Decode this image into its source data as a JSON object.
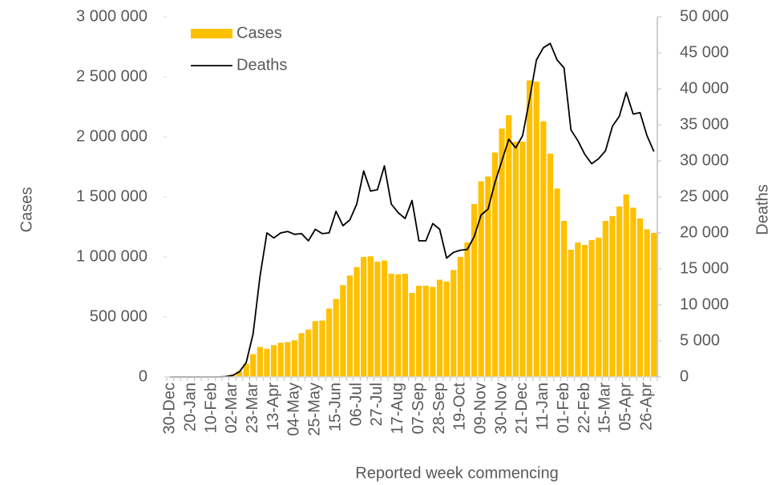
{
  "chart_data": {
    "type": "bar-line",
    "xlabel": "Reported week commencing",
    "ylabel": "Cases",
    "y2label": "Deaths",
    "categories": [
      "30-Dec",
      null,
      null,
      "20-Jan",
      null,
      null,
      "10-Feb",
      null,
      null,
      "02-Mar",
      null,
      null,
      "23-Mar",
      null,
      null,
      "13-Apr",
      null,
      null,
      "04-May",
      null,
      null,
      "25-May",
      null,
      null,
      "15-Jun",
      null,
      null,
      "06-Jul",
      null,
      null,
      "27-Jul",
      null,
      null,
      "17-Aug",
      null,
      null,
      "07-Sep",
      null,
      null,
      "28-Sep",
      null,
      null,
      "19-Oct",
      null,
      null,
      "09-Nov",
      null,
      null,
      "30-Nov",
      null,
      null,
      "21-Dec",
      null,
      null,
      "11-Jan",
      null,
      null,
      "01-Feb",
      null,
      null,
      "22-Feb",
      null,
      null,
      "15-Mar",
      null,
      null,
      "05-Apr",
      null,
      null,
      "26-Apr",
      null
    ],
    "series": [
      {
        "name": "Cases",
        "type": "bar",
        "color": "#FFC000",
        "values": [
          0,
          0,
          0,
          0,
          0,
          0,
          0,
          0,
          5000,
          20000,
          50000,
          110000,
          190000,
          250000,
          235000,
          265000,
          285000,
          290000,
          305000,
          365000,
          395000,
          465000,
          470000,
          570000,
          650000,
          765000,
          845000,
          915000,
          1000000,
          1005000,
          960000,
          970000,
          860000,
          855000,
          860000,
          700000,
          760000,
          760000,
          750000,
          810000,
          795000,
          890000,
          1000000,
          1120000,
          1440000,
          1630000,
          1670000,
          1870000,
          2070000,
          2180000,
          1960000,
          1960000,
          2470000,
          2460000,
          2130000,
          1860000,
          1570000,
          1300000,
          1060000,
          1120000,
          1100000,
          1140000,
          1160000,
          1300000,
          1340000,
          1420000,
          1520000,
          1410000,
          1320000,
          1230000,
          1200000
        ]
      },
      {
        "name": "Deaths",
        "type": "line",
        "axis": "y2",
        "color": "#000000",
        "values": [
          0,
          0,
          0,
          0,
          0,
          0,
          0,
          0,
          50,
          200,
          700,
          2000,
          6000,
          14000,
          20000,
          19300,
          20000,
          20200,
          19800,
          19900,
          18900,
          20500,
          19900,
          20000,
          23000,
          21000,
          21800,
          24000,
          28600,
          25800,
          26000,
          29300,
          24000,
          22800,
          22000,
          24500,
          18900,
          18900,
          21300,
          20500,
          16500,
          17300,
          17600,
          17700,
          19500,
          22500,
          23300,
          27000,
          30000,
          33000,
          31800,
          33500,
          38500,
          44000,
          45700,
          46300,
          44000,
          42900,
          34300,
          32800,
          30900,
          29600,
          30300,
          31400,
          34800,
          36200,
          39500,
          36500,
          36700,
          33500,
          31300
        ]
      }
    ],
    "ylim": [
      0,
      3000000
    ],
    "yticks": [
      0,
      {
        "value": 500000,
        "label": "500 000"
      },
      {
        "value": 1000000,
        "label": "1 000 000"
      },
      {
        "value": 1500000,
        "label": "1 500 000"
      },
      {
        "value": 2000000,
        "label": "2 000 000"
      },
      {
        "value": 2500000,
        "label": "2 500 000"
      },
      {
        "value": 3000000,
        "label": "3 000 000"
      }
    ],
    "y2lim": [
      0,
      50000
    ],
    "y2ticks": [
      0,
      {
        "value": 5000,
        "label": "5 000"
      },
      {
        "value": 10000,
        "label": "10 000"
      },
      {
        "value": 15000,
        "label": "15 000"
      },
      {
        "value": 20000,
        "label": "20 000"
      },
      {
        "value": 25000,
        "label": "25 000"
      },
      {
        "value": 30000,
        "label": "30 000"
      },
      {
        "value": 35000,
        "label": "35 000"
      },
      {
        "value": 40000,
        "label": "40 000"
      },
      {
        "value": 45000,
        "label": "45 000"
      },
      {
        "value": 50000,
        "label": "50 000"
      }
    ],
    "legend": "upper left"
  }
}
